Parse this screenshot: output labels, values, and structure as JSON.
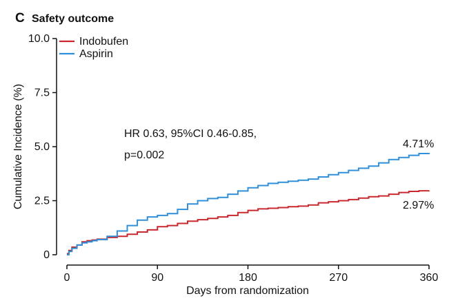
{
  "panel_letter": "C",
  "chart_data": {
    "type": "line",
    "step": true,
    "title": "Safety outcome",
    "xlabel": "Days from randomization",
    "ylabel": "Cumulative Incidence (%)",
    "xlim": [
      0,
      360
    ],
    "ylim": [
      0,
      10
    ],
    "xticks": [
      0,
      90,
      180,
      270,
      360
    ],
    "yticks": [
      0,
      2.5,
      5,
      7.5,
      10
    ],
    "xtick_labels": [
      "0",
      "90",
      "180",
      "270",
      "360"
    ],
    "ytick_labels": [
      "0",
      "2.5",
      "5.0",
      "7.5",
      "10.0"
    ],
    "grid": false,
    "legend_position": "top-left",
    "annotations": [
      {
        "text": "HR 0.63, 95%CI 0.46-0.85,"
      },
      {
        "text": "p=0.002"
      },
      {
        "text": "4.71%"
      },
      {
        "text": "2.97%"
      }
    ],
    "series": [
      {
        "name": "Indobufen",
        "color": "#c8282d",
        "x": [
          0,
          2,
          5,
          10,
          15,
          20,
          25,
          30,
          40,
          50,
          60,
          70,
          80,
          90,
          100,
          110,
          120,
          130,
          140,
          150,
          160,
          170,
          180,
          190,
          200,
          210,
          220,
          230,
          240,
          250,
          260,
          270,
          280,
          290,
          300,
          310,
          320,
          330,
          340,
          350,
          360
        ],
        "y": [
          0.05,
          0.2,
          0.35,
          0.45,
          0.6,
          0.65,
          0.68,
          0.72,
          0.8,
          0.85,
          0.95,
          1.05,
          1.15,
          1.3,
          1.35,
          1.45,
          1.55,
          1.62,
          1.68,
          1.75,
          1.82,
          1.95,
          2.05,
          2.12,
          2.15,
          2.18,
          2.22,
          2.25,
          2.3,
          2.4,
          2.45,
          2.5,
          2.55,
          2.62,
          2.68,
          2.72,
          2.8,
          2.88,
          2.93,
          2.96,
          2.97
        ]
      },
      {
        "name": "Aspirin",
        "color": "#2f8fd8",
        "x": [
          0,
          2,
          5,
          10,
          15,
          20,
          25,
          30,
          40,
          50,
          60,
          70,
          80,
          90,
          100,
          110,
          120,
          130,
          140,
          150,
          160,
          170,
          180,
          190,
          200,
          210,
          220,
          230,
          240,
          250,
          260,
          270,
          280,
          290,
          300,
          310,
          320,
          330,
          340,
          350,
          360
        ],
        "y": [
          0.0,
          0.15,
          0.3,
          0.45,
          0.55,
          0.6,
          0.65,
          0.7,
          0.85,
          1.1,
          1.35,
          1.6,
          1.75,
          1.82,
          1.9,
          2.1,
          2.35,
          2.5,
          2.6,
          2.65,
          2.8,
          2.95,
          3.1,
          3.2,
          3.3,
          3.35,
          3.4,
          3.45,
          3.5,
          3.6,
          3.7,
          3.8,
          3.9,
          4.0,
          4.1,
          4.25,
          4.4,
          4.5,
          4.6,
          4.68,
          4.71
        ]
      }
    ]
  }
}
